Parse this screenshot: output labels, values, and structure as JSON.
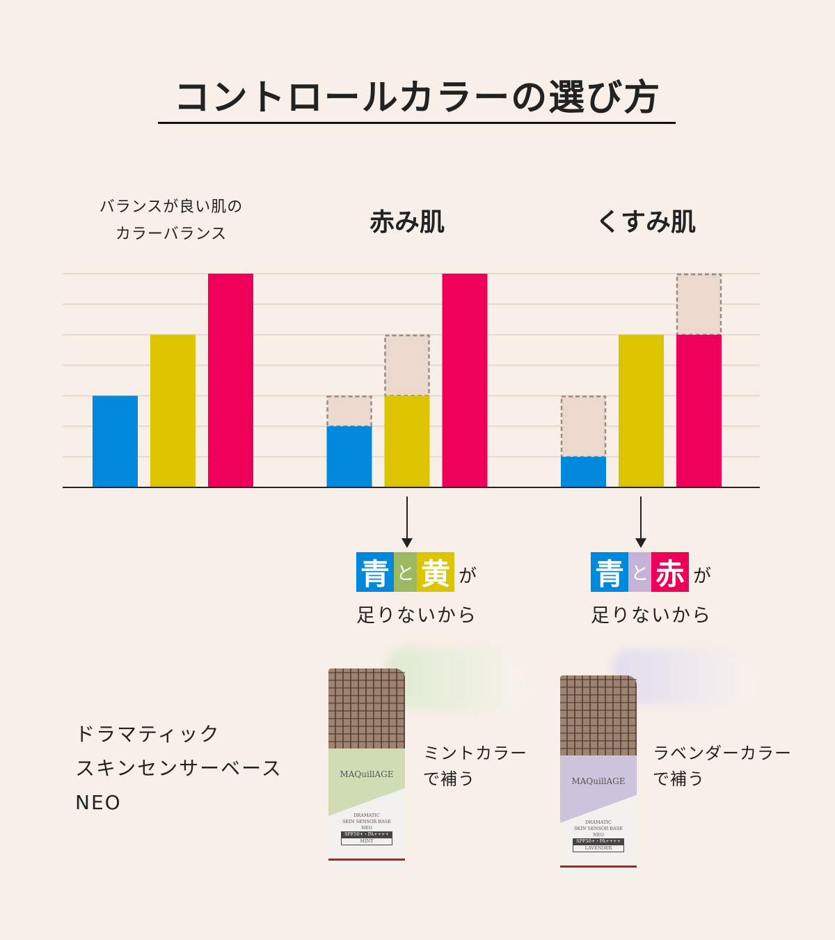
{
  "title": "コントロールカラーの選び方",
  "chart_data": {
    "type": "bar",
    "grid": true,
    "ylim": [
      0,
      7
    ],
    "colors": {
      "blue": "#0088dd",
      "yellow": "#dcc400",
      "red": "#ee005a",
      "deficit": "#ead9cc",
      "deficit_border": "#9a8c84"
    },
    "groups": [
      {
        "label_lines": [
          "バランスが良い肌の",
          "カラーバランス"
        ],
        "values": [
          3,
          5,
          7
        ],
        "targets": [
          3,
          5,
          7
        ]
      },
      {
        "label": "赤み肌",
        "values": [
          2,
          3,
          7
        ],
        "targets": [
          3,
          5,
          7
        ]
      },
      {
        "label": "くすみ肌",
        "values": [
          1,
          5,
          5
        ],
        "targets": [
          3,
          5,
          7
        ]
      }
    ],
    "series_colors": [
      "blue",
      "yellow",
      "red"
    ]
  },
  "callouts": [
    {
      "c1": "青",
      "mid": "と",
      "c2": "黄",
      "ga": "が",
      "sub": "足りないから",
      "colors": [
        "#0088dd",
        "#9cb860",
        "#dcc400"
      ]
    },
    {
      "c1": "青",
      "mid": "と",
      "c2": "赤",
      "ga": "が",
      "sub": "足りないから",
      "colors": [
        "#0088dd",
        "#c6b2d6",
        "#ee005a"
      ]
    }
  ],
  "product": {
    "name_lines": [
      "ドラマティック",
      "スキンセンサーベース",
      "NEO"
    ]
  },
  "products": [
    {
      "brand": "MAQuillAGE",
      "desc": [
        "DRAMATIC",
        "SKIN SENSOR BASE",
        "NEO",
        "SPF50+・PA++++",
        "MINT"
      ],
      "color": "#cfdcb4",
      "smear": "#dcebd0",
      "caption": [
        "ミントカラー",
        "で補う"
      ]
    },
    {
      "brand": "MAQuillAGE",
      "desc": [
        "DRAMATIC",
        "SKIN SENSOR BASE",
        "NEO",
        "SPF50+・PA++++",
        "LAVENDER"
      ],
      "color": "#cdc3da",
      "smear": "#e2dcef",
      "caption": [
        "ラベンダーカラー",
        "で補う"
      ]
    }
  ]
}
